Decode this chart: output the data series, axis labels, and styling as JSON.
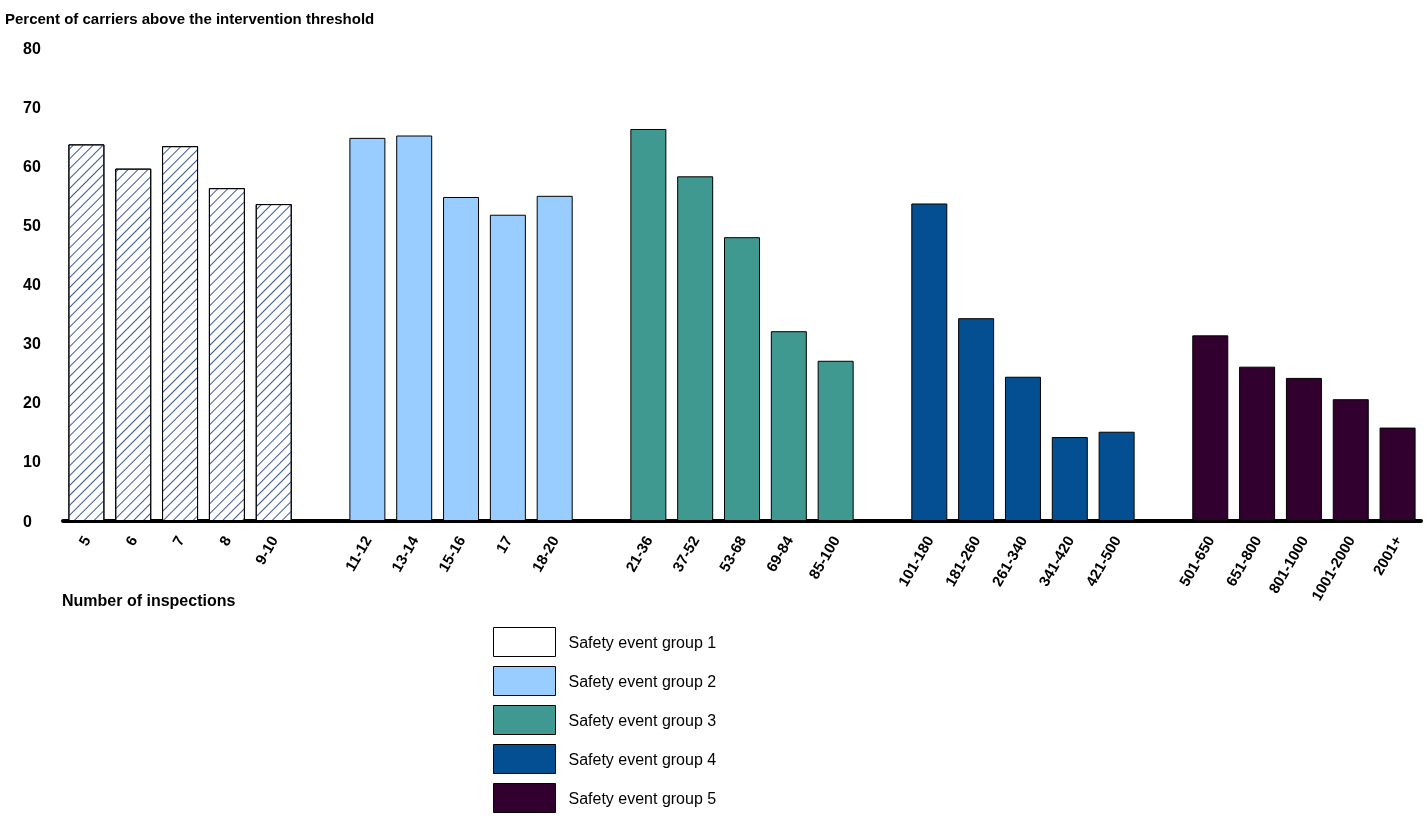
{
  "chart_data": {
    "type": "bar",
    "ylabel": "Percent of carriers above the intervention threshold",
    "xlabel": "Number of inspections",
    "categories": [
      "5",
      "6",
      "7",
      "8",
      "9-10",
      null,
      "11-12",
      "13-14",
      "15-16",
      "17",
      "18-20",
      null,
      "21-36",
      "37-52",
      "53-68",
      "69-84",
      "85-100",
      null,
      "101-180",
      "181-260",
      "261-340",
      "341-420",
      "421-500",
      null,
      "501-650",
      "651-800",
      "801-1000",
      "1001-2000",
      "2001+"
    ],
    "series": [
      {
        "name": "Safety event group 1",
        "color": "#ffffff",
        "values": [
          63.7,
          59.6,
          63.4,
          56.3,
          53.6,
          null,
          null,
          null,
          null,
          null,
          null,
          null,
          null,
          null,
          null,
          null,
          null,
          null,
          null,
          null,
          null,
          null,
          null,
          null,
          null,
          null,
          null,
          null,
          null
        ]
      },
      {
        "name": "Safety event group 2",
        "color": "#99ccff",
        "values": [
          null,
          null,
          null,
          null,
          null,
          null,
          64.8,
          65.2,
          54.8,
          51.8,
          55.0,
          null,
          null,
          null,
          null,
          null,
          null,
          null,
          null,
          null,
          null,
          null,
          null,
          null,
          null,
          null,
          null,
          null,
          null
        ]
      },
      {
        "name": "Safety event group 3",
        "color": "#3f9990",
        "values": [
          null,
          null,
          null,
          null,
          null,
          null,
          null,
          null,
          null,
          null,
          null,
          null,
          66.3,
          58.3,
          48.0,
          32.1,
          27.1,
          null,
          null,
          null,
          null,
          null,
          null,
          null,
          null,
          null,
          null,
          null,
          null
        ]
      },
      {
        "name": "Safety event group 4",
        "color": "#044f91",
        "values": [
          null,
          null,
          null,
          null,
          null,
          null,
          null,
          null,
          null,
          null,
          null,
          null,
          null,
          null,
          null,
          null,
          null,
          null,
          53.7,
          34.3,
          24.4,
          14.2,
          15.1,
          null,
          null,
          null,
          null,
          null,
          null
        ]
      },
      {
        "name": "Safety event group 5",
        "color": "#31002f",
        "values": [
          null,
          null,
          null,
          null,
          null,
          null,
          null,
          null,
          null,
          null,
          null,
          null,
          null,
          null,
          null,
          null,
          null,
          null,
          null,
          null,
          null,
          null,
          null,
          null,
          31.4,
          26.1,
          24.2,
          20.6,
          15.8
        ]
      }
    ],
    "ylim": [
      0,
      80
    ],
    "yticks": [
      0,
      10,
      20,
      30,
      40,
      50,
      60,
      70,
      80
    ],
    "grid": false,
    "legend": "bottom"
  }
}
